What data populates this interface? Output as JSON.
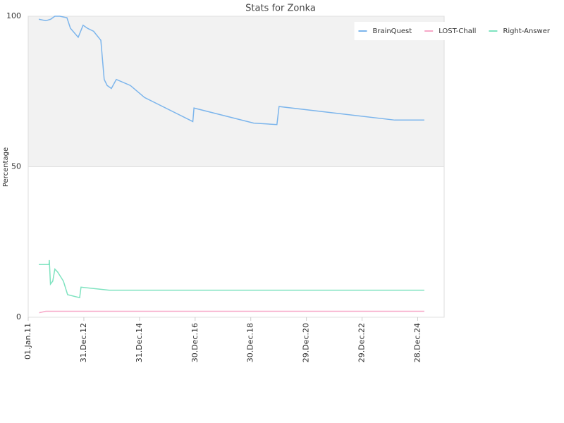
{
  "chart_data": {
    "type": "line",
    "title": "Stats for Zonka",
    "ylabel": "Percentage",
    "xlim": [
      "2011-01-01",
      "2025-12-10"
    ],
    "xticks": [
      {
        "value": "2011-01-01",
        "label": "01.Jan.11"
      },
      {
        "value": "2012-12-31",
        "label": "31.Dec.12"
      },
      {
        "value": "2014-12-31",
        "label": "31.Dec.14"
      },
      {
        "value": "2016-12-30",
        "label": "30.Dec.16"
      },
      {
        "value": "2018-12-30",
        "label": "30.Dec.18"
      },
      {
        "value": "2020-12-29",
        "label": "29.Dec.20"
      },
      {
        "value": "2022-12-29",
        "label": "29.Dec.22"
      },
      {
        "value": "2024-12-28",
        "label": "28.Dec.24"
      }
    ],
    "ylim": [
      0,
      100
    ],
    "yticks": [
      0,
      50,
      100
    ],
    "plot_band": [
      50,
      100
    ],
    "plot_band_color": "#f2f2f2",
    "legend": "top-right",
    "series": [
      {
        "name": "BrainQuest",
        "color": "#7cb5ec",
        "x": [
          "2011-05-20",
          "2011-08-20",
          "2011-10-23",
          "2011-12-17",
          "2012-02-20",
          "2012-05-23",
          "2012-07-08",
          "2012-10-18",
          "2012-12-21",
          "2013-02-16",
          "2013-05-08",
          "2013-08-11",
          "2013-09-24",
          "2013-11-02",
          "2013-12-27",
          "2014-03-02",
          "2014-09-02",
          "2015-03-07",
          "2016-11-30",
          "2016-12-15",
          "2019-02-06",
          "2019-12-08",
          "2020-01-05",
          "2024-03-01",
          "2025-03-25"
        ],
        "values": [
          99,
          98.5,
          99,
          100,
          100,
          99.5,
          96,
          93,
          97,
          96,
          95,
          92,
          79,
          77,
          76,
          79,
          77,
          73,
          65,
          69.5,
          64.5,
          64,
          70,
          65.5,
          65.5
        ]
      },
      {
        "name": "LOST-Chall",
        "color": "#f7a8c8",
        "x": [
          "2011-05-25",
          "2011-08-20",
          "2025-03-25"
        ],
        "values": [
          1.5,
          2,
          2
        ]
      },
      {
        "name": "Right-Answer",
        "color": "#7fe3c0",
        "x": [
          "2011-05-20",
          "2011-10-01",
          "2011-10-05",
          "2011-10-20",
          "2011-11-19",
          "2011-12-17",
          "2012-01-23",
          "2012-04-07",
          "2012-06-01",
          "2012-11-06",
          "2012-11-24",
          "2013-11-28",
          "2025-03-25"
        ],
        "values": [
          17.5,
          17.5,
          19,
          11,
          12,
          16,
          15,
          12,
          7.5,
          6.5,
          10,
          9,
          9
        ]
      }
    ]
  }
}
